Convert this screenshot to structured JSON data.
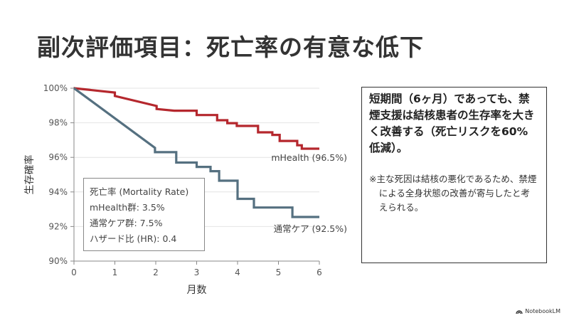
{
  "slide": {
    "title": "副次評価項目：死亡率の有意な低下"
  },
  "chart_data": {
    "type": "line",
    "step": true,
    "title": "",
    "xlabel": "月数",
    "ylabel": "生存確率",
    "xlim": [
      0,
      6
    ],
    "ylim": [
      90,
      100
    ],
    "x_ticks": [
      "0",
      "1",
      "2",
      "3",
      "4",
      "5",
      "6"
    ],
    "y_ticks": [
      "90%",
      "92%",
      "94%",
      "96%",
      "98%",
      "100%"
    ],
    "y_tick_values": [
      90,
      92,
      94,
      96,
      98,
      100
    ],
    "x_tick_values": [
      0,
      1,
      2,
      3,
      4,
      5,
      6
    ],
    "grid": "horizontal",
    "series": [
      {
        "name": "mHealth",
        "label": "mHealth (96.5%)",
        "color": "#b5272d",
        "points": [
          [
            0,
            100
          ],
          [
            1.0,
            99.75
          ],
          [
            1.0,
            99.55
          ],
          [
            2.02,
            98.97
          ],
          [
            2.02,
            98.8
          ],
          [
            2.45,
            98.7
          ],
          [
            3.0,
            98.7
          ],
          [
            3.0,
            98.45
          ],
          [
            3.5,
            98.45
          ],
          [
            3.5,
            98.15
          ],
          [
            3.75,
            98.15
          ],
          [
            3.75,
            97.98
          ],
          [
            3.98,
            97.98
          ],
          [
            3.98,
            97.82
          ],
          [
            4.5,
            97.82
          ],
          [
            4.5,
            97.45
          ],
          [
            4.85,
            97.45
          ],
          [
            4.85,
            97.3
          ],
          [
            5.03,
            97.3
          ],
          [
            5.03,
            96.95
          ],
          [
            5.46,
            96.95
          ],
          [
            5.46,
            96.7
          ],
          [
            5.57,
            96.7
          ],
          [
            5.57,
            96.5
          ],
          [
            6.0,
            96.5
          ]
        ]
      },
      {
        "name": "通常ケア",
        "label": "通常ケア (92.5%)",
        "color": "#557080",
        "points": [
          [
            0,
            100
          ],
          [
            1.98,
            96.55
          ],
          [
            1.98,
            96.3
          ],
          [
            2.5,
            96.3
          ],
          [
            2.5,
            95.7
          ],
          [
            3.0,
            95.7
          ],
          [
            3.0,
            95.45
          ],
          [
            3.34,
            95.45
          ],
          [
            3.34,
            95.2
          ],
          [
            3.55,
            95.2
          ],
          [
            3.55,
            94.65
          ],
          [
            4.0,
            94.65
          ],
          [
            4.0,
            93.6
          ],
          [
            4.4,
            93.6
          ],
          [
            4.4,
            93.1
          ],
          [
            5.34,
            93.1
          ],
          [
            5.34,
            92.55
          ],
          [
            6.0,
            92.55
          ]
        ]
      }
    ],
    "annotation_box": {
      "title": "死亡率 (Mortality Rate)",
      "lines": [
        "mHealth群: 3.5%",
        "通常ケア群: 7.5%",
        "ハザード比 (HR): 0.4"
      ]
    }
  },
  "callout": {
    "main": "短期間（6ヶ月）であっても、禁煙支援は結核患者の生存率を大きく改善する（死亡リスクを60%低減）。",
    "note": "※主な死因は結核の悪化であるため、禁煙による全身状態の改善が寄与したと考えられる。"
  },
  "brand": {
    "name": "NotebookLM"
  }
}
